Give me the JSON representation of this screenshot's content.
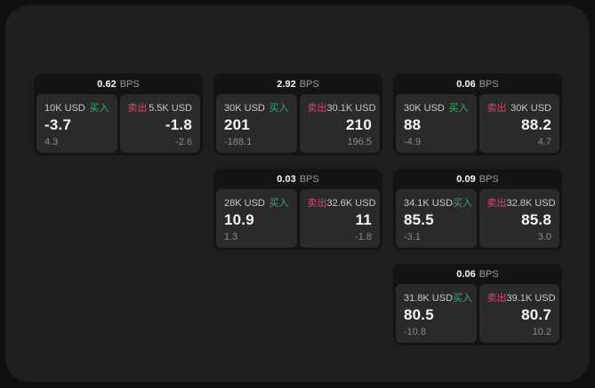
{
  "labels": {
    "bps_unit": "BPS",
    "buy": "买入",
    "sell": "卖出"
  },
  "colors": {
    "page_bg": "#0f0f0f",
    "window_bg": "#1e1e1e",
    "card_bg": "#141414",
    "panel_bg": "#2a2a2a",
    "buy_green": "#3ba86f",
    "sell_red": "#d8486a",
    "value_white": "#f5f5f5",
    "sub_gray": "#8b8b8b"
  },
  "cards": [
    {
      "col": 1,
      "row": 1,
      "bps": "0.62",
      "buy": {
        "size": "10K USD",
        "value": "-3.7",
        "sub": "4.3"
      },
      "sell": {
        "size": "5.5K USD",
        "value": "-1.8",
        "sub": "-2.6"
      }
    },
    {
      "col": 2,
      "row": 1,
      "bps": "2.92",
      "buy": {
        "size": "30K USD",
        "value": "201",
        "sub": "-188.1"
      },
      "sell": {
        "size": "30.1K USD",
        "value": "210",
        "sub": "196.5"
      }
    },
    {
      "col": 3,
      "row": 1,
      "bps": "0.06",
      "buy": {
        "size": "30K USD",
        "value": "88",
        "sub": "-4.9"
      },
      "sell": {
        "size": "30K USD",
        "value": "88.2",
        "sub": "4.7"
      }
    },
    {
      "col": 2,
      "row": 2,
      "bps": "0.03",
      "buy": {
        "size": "28K USD",
        "value": "10.9",
        "sub": "1.3"
      },
      "sell": {
        "size": "32.6K USD",
        "value": "11",
        "sub": "-1.8"
      }
    },
    {
      "col": 3,
      "row": 2,
      "bps": "0.09",
      "buy": {
        "size": "34.1K USD",
        "value": "85.5",
        "sub": "-3.1"
      },
      "sell": {
        "size": "32.8K USD",
        "value": "85.8",
        "sub": "3.0"
      }
    },
    {
      "col": 3,
      "row": 3,
      "bps": "0.06",
      "buy": {
        "size": "31.8K USD",
        "value": "80.5",
        "sub": "-10.8"
      },
      "sell": {
        "size": "39.1K USD",
        "value": "80.7",
        "sub": "10.2"
      }
    }
  ]
}
